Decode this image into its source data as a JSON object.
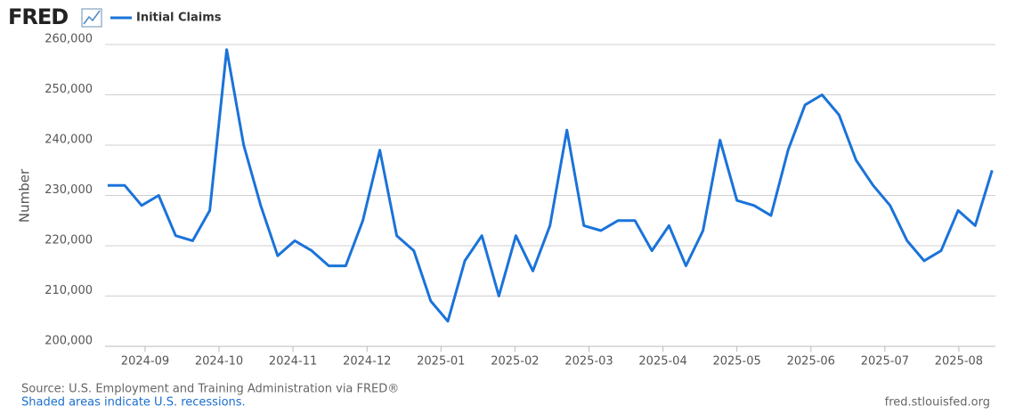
{
  "chart_data": {
    "type": "line",
    "logo": "FRED",
    "ylabel": "Number",
    "source": "Source: U.S. Employment and Training Administration via FRED®",
    "note": "Shaded areas indicate U.S. recessions.",
    "site": "fred.stlouisfed.org",
    "x": [
      2024.6245,
      2024.6437,
      2024.6628,
      2024.682,
      2024.7011,
      2024.7203,
      2024.7395,
      2024.7586,
      2024.7778,
      2024.7969,
      2024.8161,
      2024.8353,
      2024.8544,
      2024.8736,
      2024.8927,
      2024.9119,
      2024.9311,
      2024.9502,
      2024.9694,
      2024.9885,
      2025.0077,
      2025.0269,
      2025.046,
      2025.0652,
      2025.0843,
      2025.1035,
      2025.1227,
      2025.1418,
      2025.161,
      2025.1801,
      2025.1993,
      2025.2185,
      2025.2376,
      2025.2568,
      2025.2759,
      2025.2951,
      2025.3143,
      2025.3334,
      2025.3526,
      2025.3717,
      2025.3909,
      2025.4101,
      2025.4292,
      2025.4484,
      2025.4675,
      2025.4867,
      2025.5059,
      2025.525,
      2025.5442,
      2025.5633,
      2025.5825,
      2025.6017,
      2025.6208
    ],
    "series": [
      {
        "name": "Initial Claims",
        "color": "#1a73d9",
        "values": [
          232000,
          232000,
          228000,
          230000,
          222000,
          221000,
          227000,
          259000,
          240000,
          228000,
          218000,
          221000,
          219000,
          216000,
          216000,
          225000,
          239000,
          222000,
          219000,
          209000,
          205000,
          217000,
          222000,
          210000,
          222000,
          215000,
          224000,
          243000,
          224000,
          223000,
          225000,
          225000,
          219000,
          224000,
          216000,
          223000,
          241000,
          229000,
          228000,
          226000,
          239000,
          248000,
          250000,
          246000,
          237000,
          232000,
          228000,
          221000,
          217000,
          219000,
          227000,
          224000,
          235000
        ]
      }
    ],
    "xlim": [
      2024.6216,
      2025.6245
    ],
    "xticks": [
      {
        "value": 2024.6667,
        "label": "2024-09"
      },
      {
        "value": 2024.75,
        "label": "2024-10"
      },
      {
        "value": 2024.8333,
        "label": "2024-11"
      },
      {
        "value": 2024.9167,
        "label": "2024-12"
      },
      {
        "value": 2025.0,
        "label": "2025-01"
      },
      {
        "value": 2025.0833,
        "label": "2025-02"
      },
      {
        "value": 2025.1667,
        "label": "2025-03"
      },
      {
        "value": 2025.25,
        "label": "2025-04"
      },
      {
        "value": 2025.3333,
        "label": "2025-05"
      },
      {
        "value": 2025.4167,
        "label": "2025-06"
      },
      {
        "value": 2025.5,
        "label": "2025-07"
      },
      {
        "value": 2025.5833,
        "label": "2025-08"
      }
    ],
    "ylim": [
      200000,
      260000
    ],
    "yticks": [
      {
        "value": 200000,
        "label": "200,000"
      },
      {
        "value": 210000,
        "label": "210,000"
      },
      {
        "value": 220000,
        "label": "220,000"
      },
      {
        "value": 230000,
        "label": "230,000"
      },
      {
        "value": 240000,
        "label": "240,000"
      },
      {
        "value": 250000,
        "label": "250,000"
      },
      {
        "value": 260000,
        "label": "260,000"
      }
    ],
    "grid": true
  }
}
